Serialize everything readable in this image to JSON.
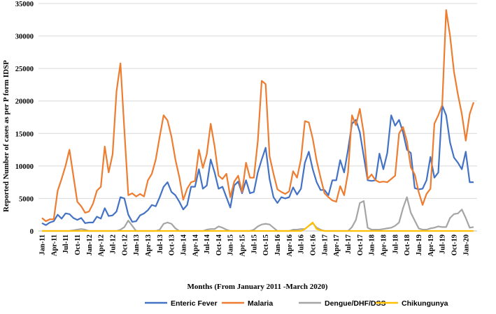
{
  "chart_data": {
    "type": "line",
    "title": "",
    "xlabel": "Months (From January 2011 -March 2020)",
    "ylabel": "Reported Number of cases as per P form IDSP",
    "ylim": [
      0,
      35000
    ],
    "y_ticks": [
      0,
      5000,
      10000,
      15000,
      20000,
      25000,
      30000,
      35000
    ],
    "y_tick_labels": [
      "0",
      "5000",
      "10000",
      "15000",
      "20000",
      "25000",
      "30000",
      "35000"
    ],
    "x_start": "Jan-11",
    "n_months": 111,
    "x_tick_labels": [
      "Jan-11",
      "Apr-11",
      "Jul-11",
      "Oct-11",
      "Jan-12",
      "Apr-12",
      "Jul-12",
      "Oct-12",
      "Jan-13",
      "Apr-13",
      "Jul-13",
      "Oct-13",
      "Jan-14",
      "Apr-14",
      "Jul-14",
      "Oct-14",
      "Jan-15",
      "Apr-15",
      "Jul-15",
      "Oct-15",
      "Jan-16",
      "Apr-16",
      "Jul-16",
      "Oct-16",
      "Jan-17",
      "Apr-17",
      "Jul-17",
      "Oct-17",
      "Jan-18",
      "Apr-18",
      "Jul-18",
      "Oct-18",
      "Jan-19",
      "Apr-19",
      "Jul-19",
      "Oct-19",
      "Jan-20"
    ],
    "legend_position": "bottom",
    "series": [
      {
        "name": "Enteric Fever",
        "color": "#4472C4",
        "values": [
          1200,
          900,
          1300,
          1500,
          2500,
          1900,
          2700,
          2600,
          2000,
          1700,
          2000,
          1200,
          1300,
          1300,
          2200,
          1900,
          3500,
          2300,
          2400,
          3000,
          5200,
          5000,
          2500,
          1400,
          1500,
          2400,
          2700,
          3200,
          4000,
          3800,
          5200,
          6800,
          7500,
          6000,
          5500,
          4500,
          3300,
          4000,
          6800,
          6800,
          9500,
          6500,
          7000,
          11000,
          9000,
          6500,
          6800,
          5200,
          3600,
          7000,
          7600,
          5800,
          7800,
          5800,
          6000,
          9000,
          11000,
          12800,
          8000,
          5200,
          4300,
          5200,
          5000,
          5200,
          6700,
          5600,
          6500,
          10500,
          12200,
          9500,
          7500,
          6300,
          6300,
          5500,
          7800,
          7800,
          10900,
          9000,
          12500,
          16500,
          17100,
          15200,
          11500,
          7800,
          7700,
          7800,
          11900,
          9500,
          12000,
          17800,
          16200,
          17100,
          15200,
          12500,
          12000,
          6600,
          6400,
          6500,
          7800,
          11400,
          8200,
          9000,
          19300,
          17800,
          13600,
          11300,
          10500,
          9500,
          12200,
          7500,
          7500
        ],
        "bind": "chart_data.series.0.name"
      },
      {
        "name": "Malaria",
        "color": "#ED7D31",
        "values": [
          2000,
          1500,
          1800,
          1800,
          6200,
          8000,
          10000,
          12500,
          8500,
          4500,
          3800,
          2800,
          3000,
          4200,
          6200,
          6800,
          13000,
          9000,
          11800,
          21500,
          25800,
          15500,
          5500,
          5800,
          5300,
          5700,
          5300,
          7800,
          8800,
          11000,
          14500,
          17800,
          17000,
          14500,
          11000,
          8300,
          4800,
          6500,
          7500,
          7700,
          12500,
          9700,
          11800,
          16500,
          13000,
          8500,
          8000,
          8800,
          5200,
          7600,
          8500,
          6000,
          10500,
          8200,
          8200,
          13800,
          23100,
          22600,
          11500,
          8800,
          6400,
          6000,
          5700,
          6100,
          9200,
          8200,
          11000,
          16900,
          16700,
          14200,
          10800,
          8200,
          5800,
          5200,
          4700,
          4500,
          6900,
          5500,
          9000,
          17800,
          16300,
          18800,
          15000,
          8000,
          8700,
          7800,
          7500,
          7600,
          7500,
          8000,
          8500,
          15000,
          16000,
          13800,
          9800,
          8700,
          6000,
          4000,
          5700,
          6500,
          16500,
          17800,
          19400,
          34000,
          30000,
          24500,
          21000,
          18000,
          13900,
          18000,
          19800
        ],
        "bind": "chart_data.series.1.name"
      },
      {
        "name": "Dengue/DHF/DSS",
        "color": "#A5A5A5",
        "values": [
          0,
          0,
          0,
          0,
          0,
          0,
          0,
          0,
          100,
          200,
          300,
          200,
          0,
          0,
          0,
          0,
          0,
          0,
          0,
          0,
          200,
          600,
          1600,
          800,
          0,
          0,
          0,
          0,
          0,
          0,
          200,
          1100,
          1300,
          1100,
          400,
          0,
          0,
          0,
          0,
          0,
          0,
          0,
          200,
          300,
          300,
          700,
          500,
          200,
          0,
          0,
          0,
          0,
          0,
          0,
          200,
          700,
          1000,
          1100,
          1000,
          500,
          0,
          0,
          0,
          0,
          200,
          200,
          300,
          300,
          800,
          1200,
          500,
          200,
          0,
          0,
          0,
          0,
          0,
          0,
          0,
          600,
          1700,
          4300,
          4600,
          500,
          200,
          200,
          200,
          300,
          400,
          500,
          800,
          1300,
          3500,
          5200,
          2800,
          1600,
          400,
          200,
          200,
          400,
          500,
          700,
          600,
          600,
          2000,
          2600,
          2700,
          3300,
          2000,
          500,
          600
        ],
        "bind": "chart_data.series.2.name"
      },
      {
        "name": "Chikungunya",
        "color": "#FFC000",
        "values": [
          0,
          0,
          0,
          0,
          0,
          0,
          0,
          0,
          0,
          0,
          0,
          0,
          0,
          0,
          0,
          0,
          0,
          0,
          0,
          0,
          0,
          0,
          0,
          0,
          0,
          0,
          0,
          0,
          0,
          0,
          0,
          0,
          0,
          0,
          0,
          0,
          0,
          0,
          0,
          0,
          0,
          0,
          0,
          0,
          0,
          0,
          0,
          0,
          0,
          0,
          0,
          0,
          0,
          0,
          0,
          0,
          0,
          0,
          0,
          0,
          0,
          0,
          0,
          0,
          0,
          0,
          0,
          300,
          800,
          1300,
          300,
          100,
          0,
          0,
          0,
          0,
          0,
          0,
          0,
          0,
          0,
          0,
          0,
          0,
          0,
          0,
          0,
          0,
          0,
          0,
          0,
          0,
          0,
          0,
          0,
          0,
          0,
          0,
          0,
          0,
          0,
          0,
          0,
          0,
          0,
          0,
          0,
          0,
          0,
          0,
          0
        ],
        "bind": "chart_data.series.3.name"
      }
    ]
  }
}
